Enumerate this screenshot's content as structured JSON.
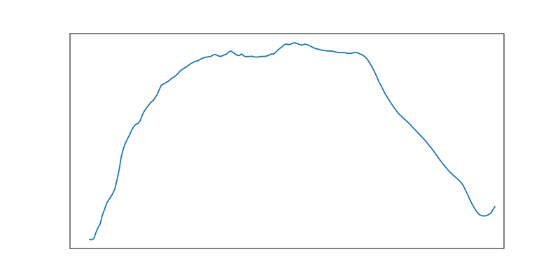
{
  "chart_data": {
    "type": "line",
    "title": "",
    "xlabel": "",
    "ylabel": "",
    "grid": false,
    "axes_visible": false,
    "line_color": "#1f77b4",
    "frame_color": "#000000",
    "x_range": [
      0,
      187
    ],
    "y_range": [
      0,
      100
    ],
    "series": [
      {
        "values": [
          0.0,
          -0.2,
          0.4,
          3.5,
          6.0,
          7.8,
          12.2,
          15.0,
          18.2,
          20.0,
          21.5,
          23.4,
          25.8,
          30.3,
          35.5,
          42.0,
          46.1,
          49.0,
          51.2,
          53.3,
          55.8,
          57.4,
          58.6,
          59.0,
          60.4,
          63.3,
          65.4,
          66.9,
          68.3,
          69.7,
          70.5,
          71.9,
          73.7,
          76.1,
          78.5,
          79.0,
          79.6,
          80.2,
          81.0,
          82.0,
          82.5,
          83.5,
          84.5,
          85.8,
          86.5,
          87.2,
          87.8,
          88.6,
          89.4,
          90.0,
          90.5,
          90.8,
          91.2,
          91.9,
          92.3,
          92.6,
          92.8,
          92.9,
          93.4,
          94.0,
          93.8,
          93.3,
          93.0,
          93.4,
          93.9,
          94.3,
          95.3,
          95.8,
          94.9,
          94.3,
          93.5,
          93.5,
          94.3,
          93.3,
          92.9,
          93.0,
          93.0,
          93.1,
          92.8,
          92.7,
          92.7,
          93.0,
          93.0,
          93.0,
          93.3,
          93.6,
          94.3,
          94.2,
          94.9,
          96.1,
          97.0,
          97.8,
          98.7,
          99.3,
          99.1,
          99.1,
          99.6,
          100.0,
          99.7,
          99.3,
          98.8,
          98.9,
          99.3,
          99.0,
          98.6,
          98.0,
          97.5,
          97.0,
          96.8,
          96.5,
          96.2,
          96.0,
          95.9,
          95.8,
          95.8,
          95.7,
          95.4,
          95.2,
          95.0,
          95.0,
          95.0,
          94.9,
          94.6,
          94.6,
          94.6,
          94.9,
          95.0,
          94.9,
          94.3,
          93.9,
          93.2,
          92.3,
          90.8,
          89.1,
          87.2,
          85.1,
          82.7,
          80.3,
          78.2,
          76.1,
          74.0,
          72.3,
          70.5,
          68.9,
          67.3,
          65.9,
          64.4,
          63.3,
          62.3,
          61.3,
          60.3,
          59.3,
          58.2,
          57.0,
          55.9,
          54.8,
          53.7,
          52.5,
          51.4,
          50.2,
          48.9,
          47.5,
          46.3,
          44.8,
          43.3,
          41.8,
          40.3,
          38.9,
          37.5,
          36.3,
          35.0,
          33.9,
          32.9,
          31.9,
          31.0,
          30.0,
          28.9,
          27.3,
          25.1,
          22.9,
          20.5,
          18.3,
          16.4,
          14.6,
          13.3,
          12.3,
          12.0,
          11.9,
          12.1,
          12.6,
          13.3,
          15.0,
          16.7
        ]
      }
    ]
  }
}
